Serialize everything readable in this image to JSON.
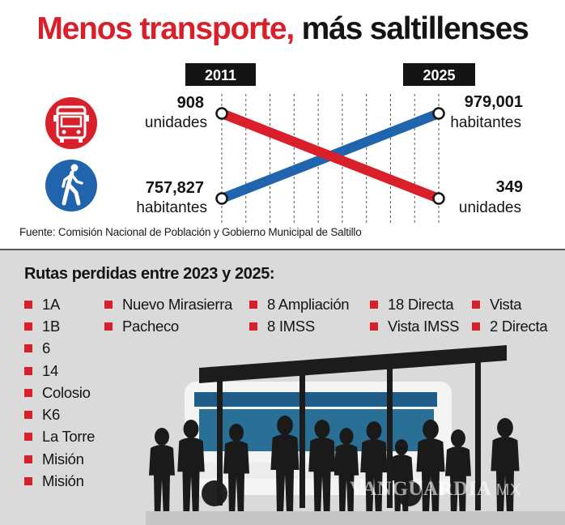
{
  "title": {
    "part1": "Menos transporte,",
    "part2": "más saltillenses"
  },
  "chart_data": {
    "type": "line",
    "x": [
      "2011",
      "2025"
    ],
    "series": [
      {
        "key": "bus",
        "values": [
          908,
          349
        ],
        "color": "#d9202a",
        "icon": "bus-icon",
        "start_value": "908",
        "start_unit": "unidades",
        "end_value": "349",
        "end_unit": "unidades"
      },
      {
        "key": "population",
        "values": [
          757827,
          979001
        ],
        "color": "#1f64ad",
        "icon": "pedestrian-icon",
        "start_value": "757,827",
        "start_unit": "habitantes",
        "end_value": "979,001",
        "end_unit": "habitantes"
      }
    ],
    "grid": true
  },
  "source": "Fuente: Comisión Nacional de Población y Gobierno Municipal de Saltillo",
  "routes": {
    "title": "Rutas perdidas entre 2023 y 2025:",
    "columns": [
      [
        "1A",
        "1B",
        "6",
        "14",
        "Colosio",
        "K6",
        "La Torre",
        "Misión",
        "Misión"
      ],
      [
        "Nuevo Mirasierra",
        "Pacheco"
      ],
      [
        "8 Ampliación",
        "8 IMSS"
      ],
      [
        "18 Directa",
        "Vista IMSS"
      ],
      [
        "Vista",
        "2 Directa"
      ]
    ]
  },
  "watermark": {
    "text": "VANGUARDIA",
    "suffix": "MX"
  },
  "colors": {
    "accent_red": "#d9202a",
    "accent_blue": "#1f64ad",
    "panel_gray": "#dadada"
  }
}
